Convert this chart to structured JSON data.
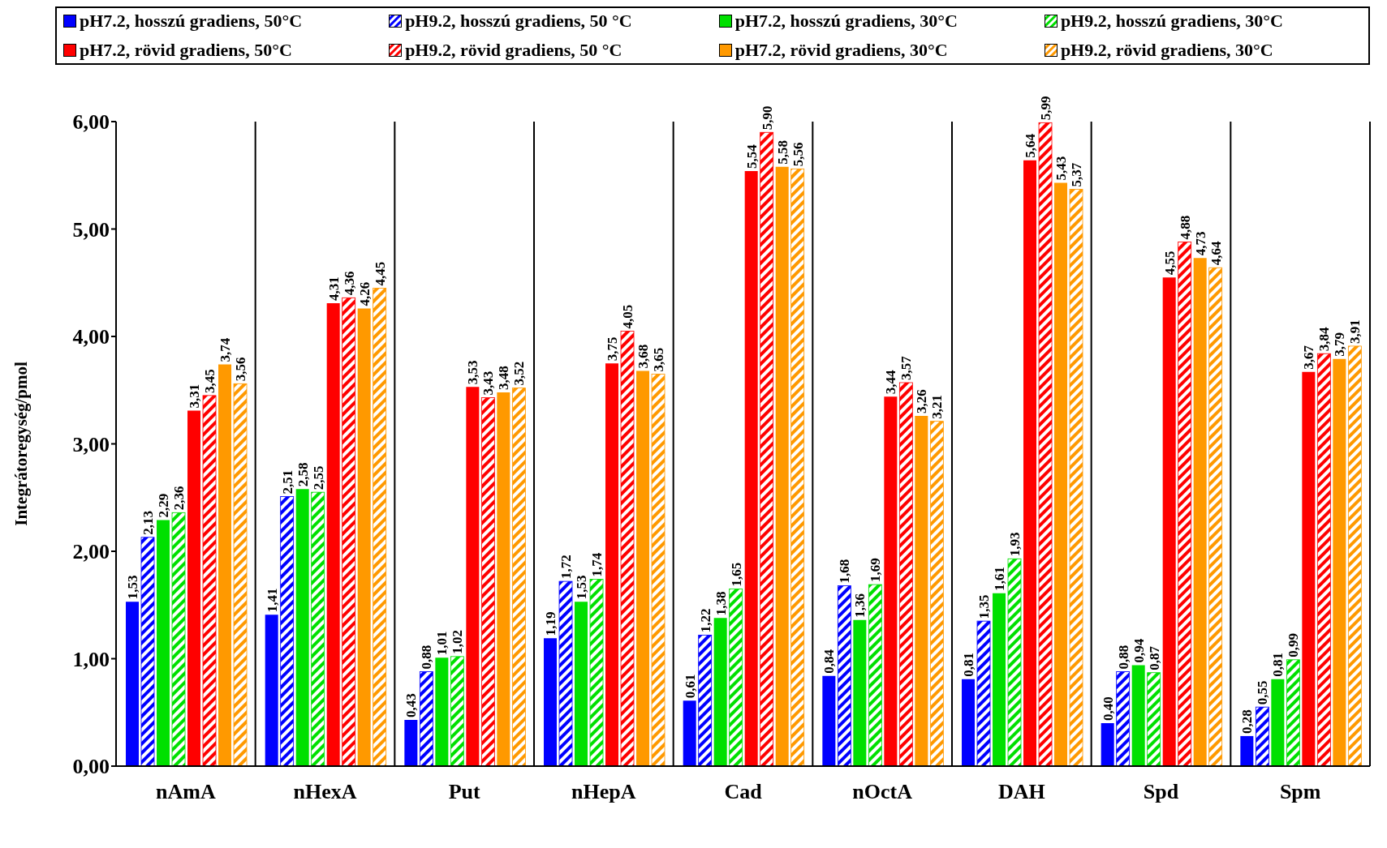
{
  "chart_data": {
    "type": "bar",
    "ylabel": "Integrátoregység/pmol",
    "categories": [
      "nAmA",
      "nHexA",
      "Put",
      "nHepA",
      "Cad",
      "nOctA",
      "DAH",
      "Spd",
      "Spm"
    ],
    "series": [
      {
        "name": "pH7.2, hosszú gradiens, 50°C",
        "color": "#0000ff",
        "values": [
          1.53,
          1.41,
          0.43,
          1.19,
          0.61,
          0.84,
          0.81,
          0.4,
          0.28
        ],
        "value_labels": [
          "1,53",
          "1,41",
          "0,43",
          "1,19",
          "0,61",
          "0,84",
          "0,81",
          "0,40",
          "0,28"
        ]
      },
      {
        "name": "pH9.2, hosszú gradiens, 50 °C",
        "color": "#0000ff",
        "values": [
          2.13,
          2.51,
          0.88,
          1.72,
          1.22,
          1.68,
          1.35,
          0.88,
          0.55
        ],
        "value_labels": [
          "2,13",
          "2,51",
          "0,88",
          "1,72",
          "1,22",
          "1,68",
          "1,35",
          "0,88",
          "0,55"
        ]
      },
      {
        "name": "pH7.2, hosszú gradiens, 30°C",
        "color": "#00e000",
        "values": [
          2.29,
          2.58,
          1.01,
          1.53,
          1.38,
          1.36,
          1.61,
          0.94,
          0.81
        ],
        "value_labels": [
          "2,29",
          "2,58",
          "1,01",
          "1,53",
          "1,38",
          "1,36",
          "1,61",
          "0,94",
          "0,81"
        ]
      },
      {
        "name": "pH9.2, hosszú gradiens, 30°C",
        "color": "#00e000",
        "values": [
          2.36,
          2.55,
          1.02,
          1.74,
          1.65,
          1.69,
          1.93,
          0.87,
          0.99
        ],
        "value_labels": [
          "2,36",
          "2,55",
          "1,02",
          "1,74",
          "1,65",
          "1,69",
          "1,93",
          "0,87",
          "0,99"
        ]
      },
      {
        "name": "pH7.2, rövid gradiens, 50°C",
        "color": "#ff0000",
        "values": [
          3.31,
          4.31,
          3.53,
          3.75,
          5.54,
          3.44,
          5.64,
          4.55,
          3.67
        ],
        "value_labels": [
          "3,31",
          "4,31",
          "3,53",
          "3,75",
          "5,54",
          "3,44",
          "5,64",
          "4,55",
          "3,67"
        ]
      },
      {
        "name": "pH9.2, rövid gradiens, 50 °C",
        "color": "#ff0000",
        "values": [
          3.45,
          4.36,
          3.43,
          4.05,
          5.9,
          3.57,
          5.99,
          4.88,
          3.84
        ],
        "value_labels": [
          "3,45",
          "4,36",
          "3,43",
          "4,05",
          "5,90",
          "3,57",
          "5,99",
          "4,88",
          "3,84"
        ]
      },
      {
        "name": "pH7.2, rövid gradiens, 30°C",
        "color": "#ff9900",
        "values": [
          3.74,
          4.26,
          3.48,
          3.68,
          5.58,
          3.26,
          5.43,
          4.73,
          3.79
        ],
        "value_labels": [
          "3,74",
          "4,26",
          "3,48",
          "3,68",
          "5,58",
          "3,26",
          "5,43",
          "4,73",
          "3,79"
        ]
      },
      {
        "name": "pH9.2, rövid gradiens, 30°C",
        "color": "#ff9900",
        "values": [
          3.56,
          4.45,
          3.52,
          3.65,
          5.56,
          3.21,
          5.37,
          4.64,
          3.91
        ],
        "value_labels": [
          "3,56",
          "4,45",
          "3,52",
          "3,65",
          "5,56",
          "3,21",
          "5,37",
          "4,64",
          "3,91"
        ]
      }
    ],
    "ylim": [
      0,
      6
    ],
    "yticks": [
      {
        "value": 0,
        "label": "0,00"
      },
      {
        "value": 1,
        "label": "1,00"
      },
      {
        "value": 2,
        "label": "2,00"
      },
      {
        "value": 3,
        "label": "3,00"
      },
      {
        "value": 4,
        "label": "4,00"
      },
      {
        "value": 5,
        "label": "5,00"
      },
      {
        "value": 6,
        "label": "6,00"
      }
    ],
    "grid": "x",
    "legend": "top"
  }
}
